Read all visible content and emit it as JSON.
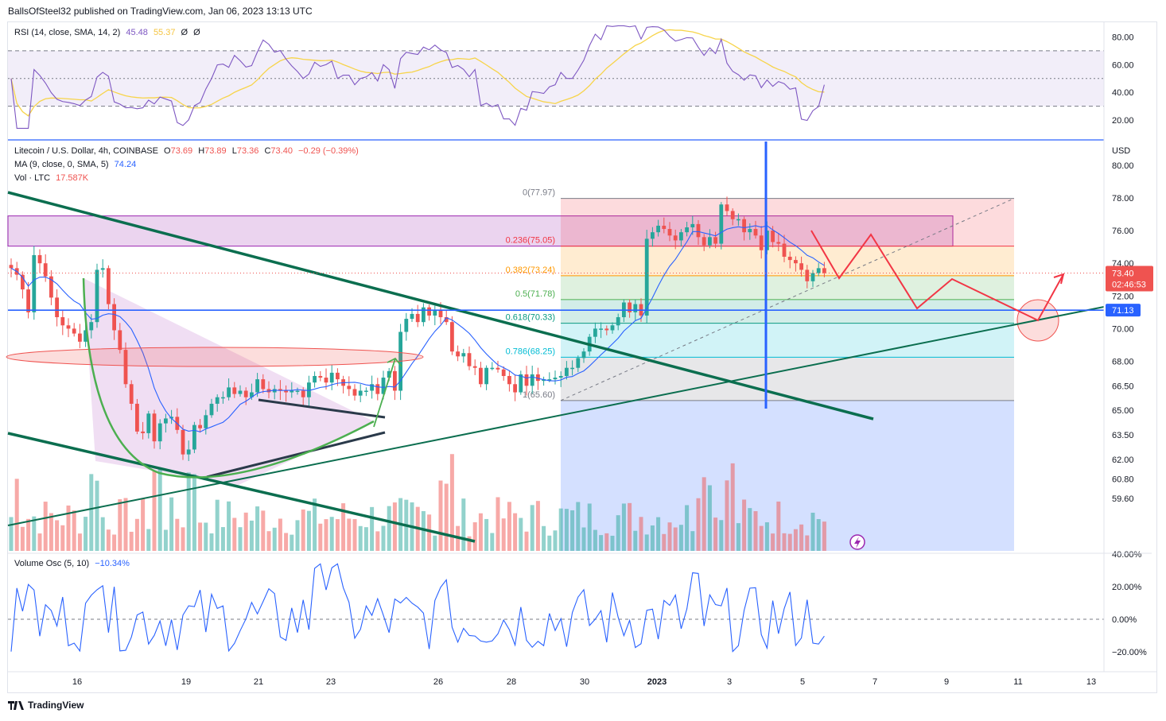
{
  "publish_line": "BallsOfSteel32 published on TradingView.com, Jan 06, 2023 13:13 UTC",
  "footer_brand": "TradingView",
  "colors": {
    "up": "#26a69a",
    "down": "#ef5350",
    "ma": "#2962ff",
    "rsi": "#7e57c2",
    "rsi_ma": "#f7d44a",
    "osc": "#2962ff",
    "trend": "#0b6e4f",
    "annot": "#ef5350",
    "arrow_green": "#4caf50"
  },
  "rsi_panel": {
    "legend": {
      "name": "RSI (14, close, SMA, 14, 2)",
      "v1": "45.48",
      "v2": "55.37",
      "v3": "Ø",
      "v4": "Ø"
    },
    "ticks": [
      "80.00",
      "60.00",
      "40.00",
      "20.00"
    ]
  },
  "main_panel": {
    "legend_symbol": {
      "name": "Litecoin / U.S. Dollar, 4h, COINBASE",
      "o_label": "O",
      "o": "73.69",
      "h_label": "H",
      "h": "73.89",
      "l_label": "L",
      "l": "73.36",
      "c_label": "C",
      "c": "73.40",
      "chg": "−0.29 (−0.39%)"
    },
    "legend_ma": {
      "name": "MA (9, close, 0, SMA, 5)",
      "value": "74.24"
    },
    "legend_vol": {
      "name": "Vol · LTC",
      "value": "17.587K"
    },
    "currency": "USD",
    "ticks": [
      "80.00",
      "78.00",
      "76.00",
      "74.00",
      "72.00",
      "70.00",
      "68.00",
      "66.50",
      "65.00",
      "63.50",
      "62.00",
      "60.80",
      "59.60"
    ],
    "price_badge": {
      "price": "73.40",
      "countdown": "02:46:53"
    },
    "level_badge": "71.13",
    "fib_labels": [
      "0(77.97)",
      "0.236(75.05)",
      "0.382(73.24)",
      "0.5(71.78)",
      "0.618(70.33)",
      "0.786(68.25)",
      "1(65.60)"
    ]
  },
  "osc_panel": {
    "legend": {
      "name": "Volume Osc (5, 10)",
      "value": "−10.34%"
    },
    "ticks": [
      "40.00%",
      "20.00%",
      "0.00%",
      "−20.00%"
    ]
  },
  "time_axis": [
    "16",
    "19",
    "21",
    "23",
    "26",
    "28",
    "30",
    "2023",
    "3",
    "5",
    "7",
    "9",
    "11",
    "13"
  ],
  "chart_data": {
    "type": "candlestick",
    "title": "Litecoin / U.S. Dollar, 4h, COINBASE",
    "ylabel": "USD",
    "ylim": [
      59.6,
      81.2
    ],
    "close_path": [
      73.7,
      73.3,
      72.4,
      71.0,
      74.5,
      74.0,
      73.2,
      71.9,
      70.7,
      70.2,
      70.0,
      69.7,
      69.2,
      69.9,
      70.4,
      73.6,
      73.7,
      71.5,
      69.9,
      68.7,
      66.6,
      65.4,
      63.7,
      63.6,
      64.8,
      63.1,
      64.2,
      64.5,
      64.6,
      63.8,
      62.3,
      62.6,
      64.1,
      63.9,
      64.7,
      65.4,
      65.8,
      65.8,
      66.4,
      66.0,
      66.2,
      65.8,
      66.1,
      66.9,
      66.3,
      66.1,
      66.3,
      66.2,
      66.1,
      66.2,
      66.2,
      65.8,
      66.7,
      67.1,
      67.0,
      66.7,
      67.3,
      66.9,
      66.5,
      66.3,
      65.9,
      66.2,
      66.2,
      66.6,
      66.0,
      67.0,
      67.4,
      66.2,
      69.8,
      70.6,
      70.9,
      70.4,
      71.3,
      70.8,
      71.1,
      70.7,
      70.4,
      68.6,
      68.3,
      68.5,
      67.7,
      67.6,
      66.6,
      67.6,
      67.6,
      67.5,
      67.1,
      66.6,
      66.1,
      67.2,
      66.5,
      67.2,
      66.8,
      66.9,
      66.9,
      67.0,
      67.1,
      67.6,
      67.6,
      68.2,
      68.6,
      69.5,
      70.0,
      70.0,
      69.9,
      70.2,
      70.7,
      71.6,
      71.0,
      71.5,
      70.8,
      75.5,
      75.9,
      76.3,
      76.1,
      75.7,
      75.4,
      75.9,
      76.2,
      76.4,
      75.6,
      75.1,
      75.6,
      75.2,
      77.6,
      77.2,
      76.7,
      76.7,
      75.9,
      76.1,
      75.7,
      74.8,
      76.0,
      75.3,
      75.2,
      74.4,
      74.2,
      74.0,
      73.6,
      72.9,
      73.4,
      73.7,
      73.4
    ],
    "ma_label": "MA (9, close, 0, SMA, 5)",
    "ma_value": 74.24,
    "horizontal_level": 71.13,
    "last_price": 73.4,
    "fib_levels": [
      {
        "ratio": "0",
        "price": 77.97
      },
      {
        "ratio": "0.236",
        "price": 75.05
      },
      {
        "ratio": "0.382",
        "price": 73.24
      },
      {
        "ratio": "0.5",
        "price": 71.78
      },
      {
        "ratio": "0.618",
        "price": 70.33
      },
      {
        "ratio": "0.786",
        "price": 68.25
      },
      {
        "ratio": "1",
        "price": 65.6
      }
    ],
    "rsi": {
      "last": 45.48,
      "ma_last": 55.37,
      "bands": [
        70,
        50,
        30
      ],
      "ylim": [
        10,
        90
      ]
    },
    "volume_osc": {
      "last": -10.34,
      "ylim": [
        -30,
        40
      ]
    },
    "x_ticks": [
      "16",
      "19",
      "21",
      "23",
      "26",
      "28",
      "30",
      "2023",
      "3",
      "5",
      "7",
      "9",
      "11",
      "13"
    ]
  }
}
